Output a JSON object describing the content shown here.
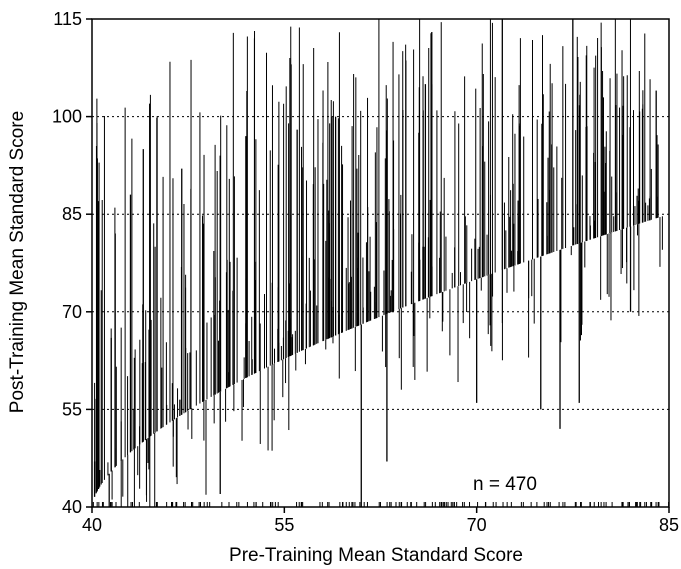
{
  "chart_data": {
    "type": "bar",
    "subtype": "vertical change lines (pre-training to post-training score per subject)",
    "xlabel": "Pre-Training Mean Standard Score",
    "ylabel": "Post-Training Mean Standard Score",
    "annotation": "n = 470",
    "xlim": [
      40,
      85
    ],
    "ylim": [
      40,
      115
    ],
    "x_ticks": [
      40,
      55,
      70,
      85
    ],
    "x_tick_labels": [
      "40",
      "55",
      "70",
      "85"
    ],
    "y_ticks": [
      40,
      55,
      70,
      85,
      100,
      115
    ],
    "y_tick_labels": [
      "40",
      "55",
      "70",
      "85",
      "100",
      "115"
    ],
    "grid": "horizontal dotted at 55, 70, 85, 100",
    "legend": "none",
    "n": 470,
    "series": [
      {
        "baseline": "post = pre diagonal (pre-training score)",
        "pre_range": [
          40,
          85
        ],
        "post_range_observed": [
          40,
          115
        ],
        "sample_lines": [
          {
            "pre": 40.2,
            "post": 47
          },
          {
            "pre": 40.5,
            "post": 87
          },
          {
            "pre": 41.5,
            "post": 66
          },
          {
            "pre": 43,
            "post": 88
          },
          {
            "pre": 44,
            "post": 95
          },
          {
            "pre": 44.5,
            "post": 102
          },
          {
            "pre": 47,
            "post": 92
          },
          {
            "pre": 50,
            "post": 42
          },
          {
            "pre": 50,
            "post": 94
          },
          {
            "pre": 52,
            "post": 97
          },
          {
            "pre": 56,
            "post": 98
          },
          {
            "pre": 59,
            "post": 100
          },
          {
            "pre": 61,
            "post": 39
          },
          {
            "pre": 63,
            "post": 47
          },
          {
            "pre": 66,
            "post": 105
          },
          {
            "pre": 66.5,
            "post": 113
          },
          {
            "pre": 70,
            "post": 56
          },
          {
            "pre": 72,
            "post": 115
          },
          {
            "pre": 75,
            "post": 55
          },
          {
            "pre": 76.5,
            "post": 52
          },
          {
            "pre": 77.5,
            "post": 115
          },
          {
            "pre": 78,
            "post": 56
          },
          {
            "pre": 82,
            "post": 70
          },
          {
            "pre": 84,
            "post": 104
          }
        ]
      }
    ]
  }
}
